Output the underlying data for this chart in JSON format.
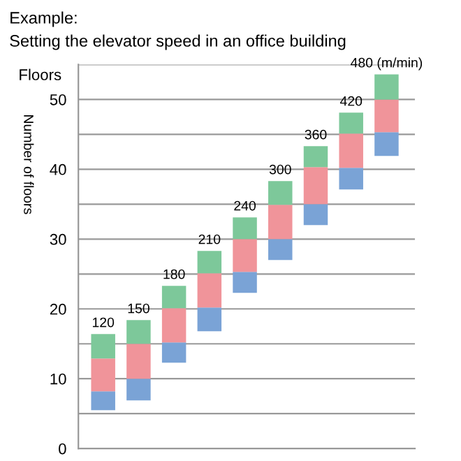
{
  "chart_data": {
    "type": "bar",
    "title": "Example:",
    "subtitle": "Setting the elevator speed in an office building",
    "ylabel": "Number of floors",
    "annotations": [
      "Floors"
    ],
    "categories": [
      "120",
      "150",
      "180",
      "210",
      "240",
      "300",
      "360",
      "420",
      "480 (m/min)"
    ],
    "series": [
      {
        "color": "#7aa3d6",
        "base": [
          5.5,
          6.9,
          12.3,
          16.8,
          22.3,
          27.0,
          32.0,
          37.1,
          41.9
        ],
        "values": [
          2.7,
          3.1,
          2.9,
          3.4,
          3.0,
          3.0,
          3.0,
          3.1,
          3.4
        ]
      },
      {
        "color": "#f0949a",
        "base": [
          8.2,
          10.0,
          15.2,
          20.2,
          25.3,
          30.0,
          35.0,
          40.2,
          45.3
        ],
        "values": [
          4.7,
          5.0,
          4.9,
          4.9,
          4.7,
          4.9,
          5.3,
          4.9,
          4.7
        ]
      },
      {
        "color": "#7dc89a",
        "base": [
          12.9,
          15.0,
          20.1,
          25.1,
          30.0,
          34.9,
          40.3,
          45.1,
          50.0
        ],
        "values": [
          3.5,
          3.4,
          3.2,
          3.2,
          3.1,
          3.4,
          3.0,
          3.0,
          3.6
        ]
      }
    ],
    "ylim": [
      0,
      55
    ],
    "yticks": [
      0,
      {
        "value": 5,
        "label": null
      },
      10,
      {
        "value": 15,
        "label": null
      },
      20,
      {
        "value": 25,
        "label": null
      },
      30,
      {
        "value": 35,
        "label": null
      },
      40,
      {
        "value": 45,
        "label": null
      },
      50,
      {
        "value": 55,
        "label": null
      }
    ],
    "grid": "y"
  }
}
